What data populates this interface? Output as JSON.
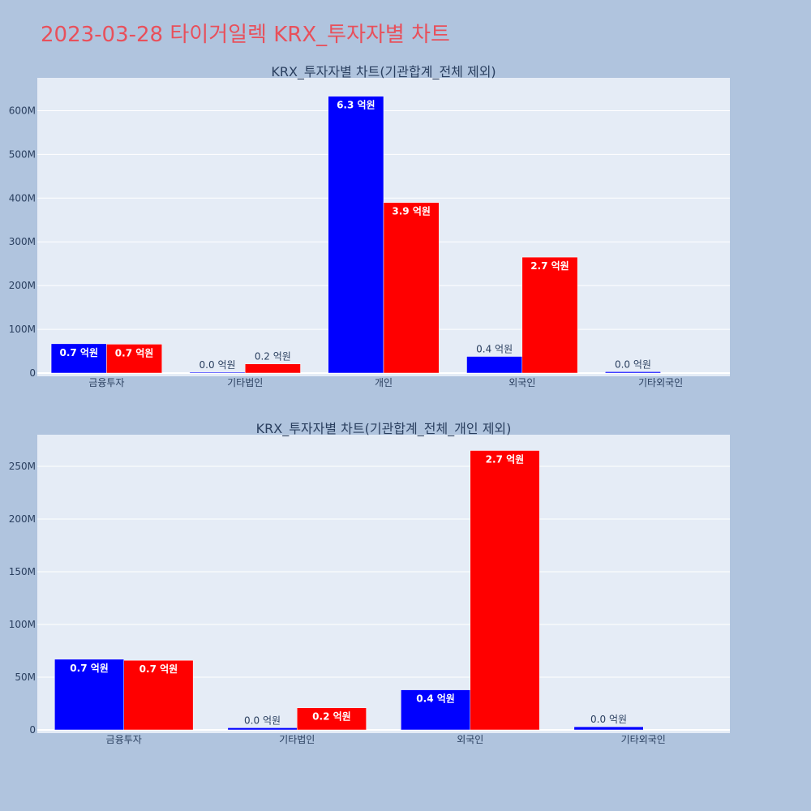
{
  "title": "2023-03-28 타이거일렉 KRX_투자자별 차트",
  "colors": {
    "background": "#b0c4de",
    "plot_bg": "#e5ecf6",
    "title": "#e8505b",
    "series_a": "#0000ff",
    "series_b": "#ff0000"
  },
  "chart_data": [
    {
      "type": "bar",
      "title": "KRX_투자자별 차트(기관합계_전체 제외)",
      "categories": [
        "금융투자",
        "기타법인",
        "개인",
        "외국인",
        "기타외국인"
      ],
      "ylim": [
        0,
        675000000
      ],
      "yticks": [
        0,
        100000000,
        200000000,
        300000000,
        400000000,
        500000000,
        600000000
      ],
      "ytick_labels": [
        "0",
        "100M",
        "200M",
        "300M",
        "400M",
        "500M",
        "600M"
      ],
      "grid": true,
      "series": [
        {
          "color": "#0000ff",
          "values": [
            67000000,
            2000000,
            633000000,
            38000000,
            3000000
          ],
          "labels": [
            "0.7 억원",
            "0.0 억원",
            "6.3 억원",
            "0.4 억원",
            "0.0 억원"
          ]
        },
        {
          "color": "#ff0000",
          "values": [
            66000000,
            21000000,
            390000000,
            265000000,
            0
          ],
          "labels": [
            "0.7 억원",
            "0.2 억원",
            "3.9 억원",
            "2.7 억원",
            ""
          ]
        }
      ]
    },
    {
      "type": "bar",
      "title": "KRX_투자자별 차트(기관합계_전체_개인 제외)",
      "categories": [
        "금융투자",
        "기타법인",
        "외국인",
        "기타외국인"
      ],
      "ylim": [
        0,
        280000000
      ],
      "yticks": [
        0,
        50000000,
        100000000,
        150000000,
        200000000,
        250000000
      ],
      "ytick_labels": [
        "0",
        "50M",
        "100M",
        "150M",
        "200M",
        "250M"
      ],
      "grid": true,
      "series": [
        {
          "color": "#0000ff",
          "values": [
            67000000,
            2000000,
            38000000,
            3000000
          ],
          "labels": [
            "0.7 억원",
            "0.0 억원",
            "0.4 억원",
            "0.0 억원"
          ]
        },
        {
          "color": "#ff0000",
          "values": [
            66000000,
            21000000,
            265000000,
            0
          ],
          "labels": [
            "0.7 억원",
            "0.2 억원",
            "2.7 억원",
            ""
          ]
        }
      ]
    }
  ]
}
